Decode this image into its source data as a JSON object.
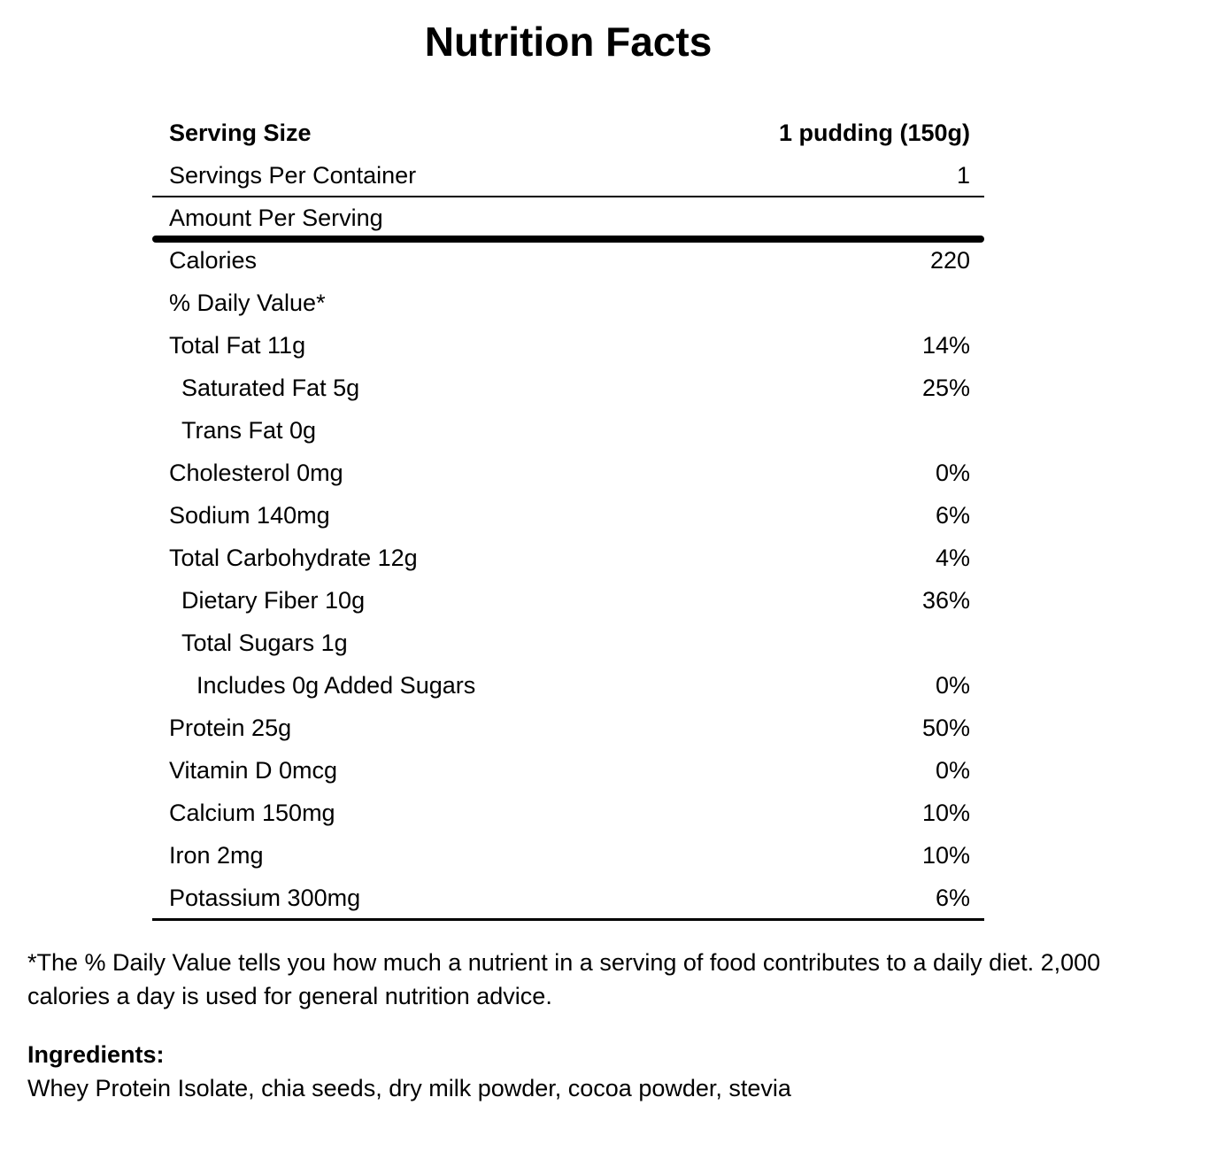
{
  "title": "Nutrition Facts",
  "serving": {
    "size_label": "Serving Size",
    "size_value": "1 pudding (150g)",
    "per_container_label": "Servings Per Container",
    "per_container_value": "1"
  },
  "amount_per_serving_label": "Amount Per Serving",
  "rows": [
    {
      "label": "Calories",
      "value": "220",
      "indent": 0
    },
    {
      "label": "% Daily Value*",
      "value": "",
      "indent": 0
    },
    {
      "label": "Total Fat 11g",
      "value": "14%",
      "indent": 0
    },
    {
      "label": "Saturated Fat 5g",
      "value": "25%",
      "indent": 1
    },
    {
      "label": "Trans Fat 0g",
      "value": "",
      "indent": 1
    },
    {
      "label": "Cholesterol 0mg",
      "value": "0%",
      "indent": 0
    },
    {
      "label": "Sodium 140mg",
      "value": "6%",
      "indent": 0
    },
    {
      "label": "Total Carbohydrate 12g",
      "value": "4%",
      "indent": 0
    },
    {
      "label": "Dietary Fiber 10g",
      "value": "36%",
      "indent": 1
    },
    {
      "label": "Total Sugars 1g",
      "value": "",
      "indent": 1
    },
    {
      "label": "Includes 0g Added Sugars",
      "value": "0%",
      "indent": 2
    },
    {
      "label": "Protein 25g",
      "value": "50%",
      "indent": 0
    },
    {
      "label": "Vitamin D 0mcg",
      "value": "0%",
      "indent": 0
    },
    {
      "label": "Calcium 150mg",
      "value": "10%",
      "indent": 0
    },
    {
      "label": "Iron 2mg",
      "value": "10%",
      "indent": 0
    },
    {
      "label": "Potassium 300mg",
      "value": "6%",
      "indent": 0
    }
  ],
  "footnote": "*The % Daily Value tells you how much a nutrient in a serving of food contributes to a daily diet. 2,000\ncalories a day is used for general nutrition advice.",
  "ingredients": {
    "heading": "Ingredients:",
    "list": "Whey Protein Isolate, chia seeds, dry milk powder, cocoa powder, stevia"
  },
  "colors": {
    "text": "#000000",
    "background": "#ffffff",
    "rule": "#000000"
  }
}
